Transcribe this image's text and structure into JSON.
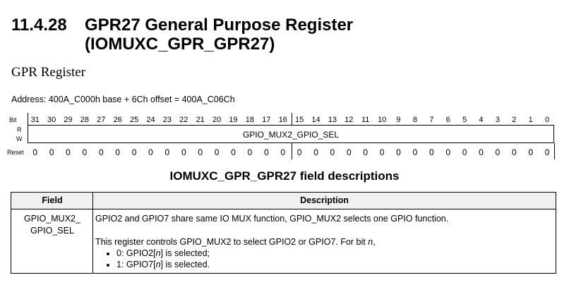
{
  "section": {
    "number": "11.4.28",
    "title_line1": "GPR27 General Purpose Register",
    "title_line2": "(IOMUXC_GPR_GPR27)",
    "subtitle": "GPR Register",
    "address": "Address: 400A_C000h base + 6Ch offset = 400A_C06Ch"
  },
  "register": {
    "bit_label": "Bit",
    "r_label": "R",
    "w_label": "W",
    "reset_label": "Reset",
    "bits": [
      "31",
      "30",
      "29",
      "28",
      "27",
      "26",
      "25",
      "24",
      "23",
      "22",
      "21",
      "20",
      "19",
      "18",
      "17",
      "16",
      "15",
      "14",
      "13",
      "12",
      "11",
      "10",
      "9",
      "8",
      "7",
      "6",
      "5",
      "4",
      "3",
      "2",
      "1",
      "0"
    ],
    "reset_values": [
      "0",
      "0",
      "0",
      "0",
      "0",
      "0",
      "0",
      "0",
      "0",
      "0",
      "0",
      "0",
      "0",
      "0",
      "0",
      "0",
      "0",
      "0",
      "0",
      "0",
      "0",
      "0",
      "0",
      "0",
      "0",
      "0",
      "0",
      "0",
      "0",
      "0",
      "0",
      "0"
    ],
    "field_name": "GPIO_MUX2_GPIO_SEL"
  },
  "field_descriptions": {
    "title": "IOMUXC_GPR_GPR27 field descriptions",
    "header_field": "Field",
    "header_description": "Description",
    "rows": [
      {
        "field_line1": "GPIO_MUX2_",
        "field_line2": "GPIO_SEL",
        "desc_p1": "GPIO2 and GPIO7 share same IO MUX function, GPIO_MUX2 selects one GPIO function.",
        "desc_p2_prefix": "This register controls GPIO_MUX2 to select GPIO2 or GPIO7. For bit ",
        "desc_p2_var": "n",
        "desc_p2_suffix": ",",
        "bullets": [
          {
            "prefix": "0: GPIO2[",
            "var": "n",
            "suffix": "] is selected;"
          },
          {
            "prefix": "1: GPIO7[",
            "var": "n",
            "suffix": "] is selected."
          }
        ]
      }
    ]
  }
}
